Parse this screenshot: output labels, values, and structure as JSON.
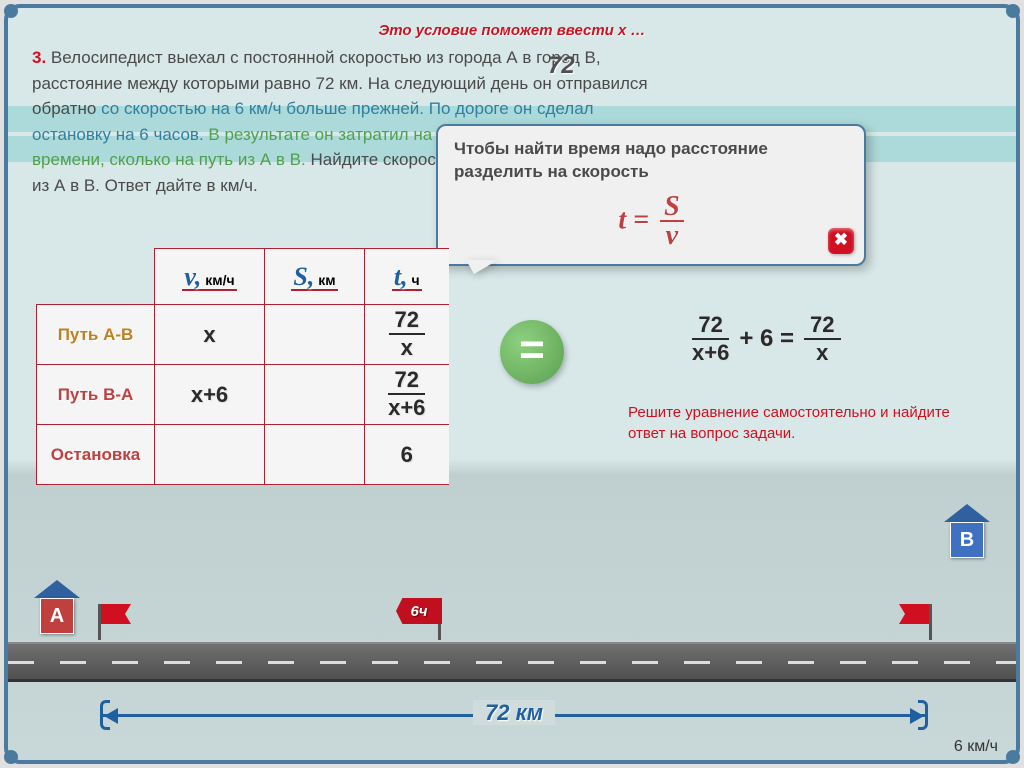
{
  "hint": "Это условие поможет ввести x …",
  "problem": {
    "num": "3.",
    "part1_a": " Велосипедист выехал с постоянной скоростью из города А в город В,",
    "part1_b": "расстояние между которыми равно 72 км. На следующий день он отправился",
    "part1_c": "обратно ",
    "mid": "со скоростью на 6 км/ч больше прежней. По дороге он сделал",
    "part1_d": "остановку на 6 часов.",
    "green_a": " В результате он затратил на обратный путь столько же",
    "green_b": "времени, сколько на путь из А в В. ",
    "part2_a": "Найдите скорость велосипедиста на пути",
    "part2_b": "из А в В. Ответ дайте в км/ч."
  },
  "badge72": "72",
  "tooltip": {
    "text": "Чтобы найти время надо расстояние разделить на скорость",
    "formula_t": "t",
    "formula_eq": " = ",
    "formula_s": "S",
    "formula_v": "v",
    "close": "✖"
  },
  "table": {
    "headers": {
      "v_sym": "v,",
      "v_unit": " км/ч",
      "s_sym": "S,",
      "s_unit": " км",
      "t_sym": "t,",
      "t_unit": " ч"
    },
    "rows": {
      "ab_label": "Путь А-В",
      "ab_v": "x",
      "ab_t_num": "72",
      "ab_t_den": "x",
      "ba_label": "Путь В-А",
      "ba_v": "x+6",
      "ba_t_num": "72",
      "ba_t_den": "x+6",
      "stop_label": "Остановка",
      "stop_t": "6"
    }
  },
  "eq_sign": "=",
  "equation": {
    "f1_num": "72",
    "f1_den": "x+6",
    "plus": " + 6 = ",
    "f2_num": "72",
    "f2_den": "x"
  },
  "solve_text": "Решите уравнение самостоятельно и найдите ответ на вопрос задачи.",
  "house_a": "А",
  "house_b": "В",
  "flag_mid": "6ч",
  "distance": "72 км",
  "speed_note": "6 км/ч",
  "colors": {
    "border": "#4a7a9e",
    "red": "#d01020",
    "blue_txt": "#2060a0",
    "table_border": "#b02030"
  }
}
